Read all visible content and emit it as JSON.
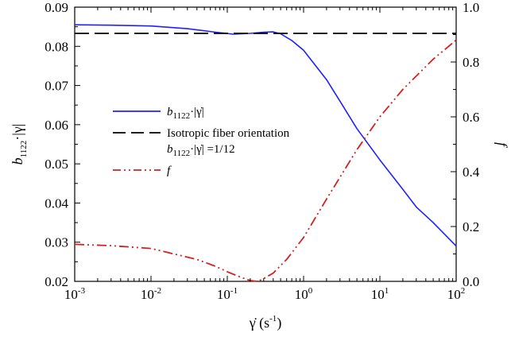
{
  "chart_data": {
    "type": "line",
    "xscale": "log",
    "xlim": [
      0.001,
      100
    ],
    "ylim": [
      0.02,
      0.09
    ],
    "y2lim": [
      0.0,
      1.0
    ],
    "grid": false,
    "x_tick_labels": [
      {
        "base": "10",
        "exp": "-3"
      },
      {
        "base": "10",
        "exp": "-2"
      },
      {
        "base": "10",
        "exp": "-1"
      },
      {
        "base": "10",
        "exp": "0"
      },
      {
        "base": "10",
        "exp": "1"
      },
      {
        "base": "10",
        "exp": "2"
      }
    ],
    "y_tick_labels": [
      "0.02",
      "0.03",
      "0.04",
      "0.05",
      "0.06",
      "0.07",
      "0.08",
      "0.09"
    ],
    "y2_tick_labels": [
      "0.0",
      "0.2",
      "0.4",
      "0.6",
      "0.8",
      "1.0"
    ],
    "xlabel": {
      "main": "γ̇ (s",
      "sup": "-1",
      "tail": ")"
    },
    "ylabel": {
      "pre": "b",
      "sub": "1122",
      "post": "·|γ|"
    },
    "y2label": "f",
    "legend_placement": "center-left",
    "series": [
      {
        "name": "b1122·|γ̇|",
        "axis": "left",
        "color": "#2020ff",
        "style": "solid",
        "x": [
          0.001,
          0.003,
          0.01,
          0.03,
          0.07,
          0.12,
          0.2,
          0.3,
          0.4,
          0.5,
          0.7,
          1,
          2,
          3,
          5,
          10,
          20,
          30,
          50,
          100
        ],
        "y": [
          0.0855,
          0.0854,
          0.0852,
          0.0845,
          0.0836,
          0.0831,
          0.0833,
          0.0836,
          0.0837,
          0.0832,
          0.0815,
          0.079,
          0.0715,
          0.066,
          0.059,
          0.051,
          0.0435,
          0.039,
          0.035,
          0.029
        ]
      },
      {
        "name": "Isotropic fiber orientation b1122·|γ̇| =1/12",
        "axis": "left",
        "color": "#000000",
        "style": "dashed",
        "x": [
          0.001,
          100
        ],
        "y": [
          0.0833,
          0.0833
        ]
      },
      {
        "name": "f",
        "axis": "right",
        "color": "#d42020",
        "style": "dashdotdot",
        "x": [
          0.001,
          0.003,
          0.01,
          0.02,
          0.04,
          0.07,
          0.1,
          0.15,
          0.2,
          0.25,
          0.3,
          0.4,
          0.6,
          1,
          2,
          5,
          10,
          20,
          50,
          100
        ],
        "y": [
          0.135,
          0.13,
          0.12,
          0.1,
          0.08,
          0.055,
          0.035,
          0.015,
          0.003,
          0.0,
          0.01,
          0.03,
          0.08,
          0.16,
          0.3,
          0.48,
          0.6,
          0.7,
          0.81,
          0.88
        ]
      }
    ],
    "legend": [
      {
        "series": 0,
        "pre": "b",
        "sub": "1122",
        "post": "·|γ̇|",
        "line2": ""
      },
      {
        "series": 1,
        "pre": "Isotropic fiber orientation",
        "sub": "",
        "post": "",
        "line2_pre": "b",
        "line2_sub": "1122",
        "line2_post": "·|γ̇| =1/12"
      },
      {
        "series": 2,
        "pre": "f",
        "sub": "",
        "post": "",
        "line2": ""
      }
    ]
  }
}
